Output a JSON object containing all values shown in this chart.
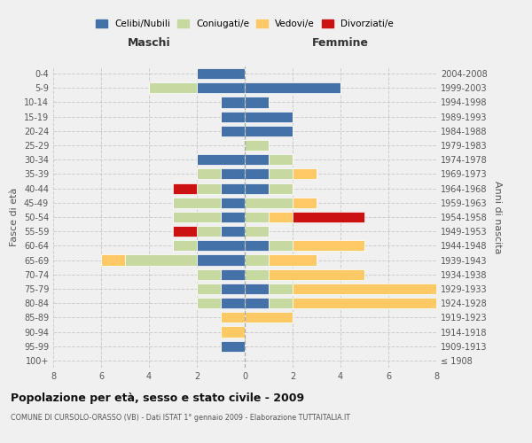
{
  "age_groups": [
    "100+",
    "95-99",
    "90-94",
    "85-89",
    "80-84",
    "75-79",
    "70-74",
    "65-69",
    "60-64",
    "55-59",
    "50-54",
    "45-49",
    "40-44",
    "35-39",
    "30-34",
    "25-29",
    "20-24",
    "15-19",
    "10-14",
    "5-9",
    "0-4"
  ],
  "birth_years": [
    "≤ 1908",
    "1909-1913",
    "1914-1918",
    "1919-1923",
    "1924-1928",
    "1929-1933",
    "1934-1938",
    "1939-1943",
    "1944-1948",
    "1949-1953",
    "1954-1958",
    "1959-1963",
    "1964-1968",
    "1969-1973",
    "1974-1978",
    "1979-1983",
    "1984-1988",
    "1989-1993",
    "1994-1998",
    "1999-2003",
    "2004-2008"
  ],
  "maschi": {
    "celibi": [
      0,
      1,
      0,
      0,
      1,
      1,
      1,
      2,
      2,
      1,
      1,
      1,
      1,
      1,
      2,
      0,
      1,
      1,
      1,
      2,
      2
    ],
    "coniugati": [
      0,
      0,
      0,
      0,
      1,
      1,
      1,
      3,
      1,
      1,
      2,
      2,
      1,
      1,
      0,
      0,
      0,
      0,
      0,
      2,
      0
    ],
    "vedovi": [
      0,
      0,
      1,
      1,
      0,
      0,
      0,
      1,
      0,
      0,
      0,
      0,
      0,
      0,
      0,
      0,
      0,
      0,
      0,
      0,
      0
    ],
    "divorziati": [
      0,
      0,
      0,
      0,
      0,
      0,
      0,
      0,
      0,
      1,
      0,
      0,
      1,
      0,
      0,
      0,
      0,
      0,
      0,
      0,
      0
    ]
  },
  "femmine": {
    "nubili": [
      0,
      0,
      0,
      0,
      1,
      1,
      0,
      0,
      1,
      0,
      0,
      0,
      1,
      1,
      1,
      0,
      2,
      2,
      1,
      4,
      0
    ],
    "coniugate": [
      0,
      0,
      0,
      0,
      1,
      1,
      1,
      1,
      1,
      1,
      1,
      2,
      1,
      1,
      1,
      1,
      0,
      0,
      0,
      0,
      0
    ],
    "vedove": [
      0,
      0,
      0,
      2,
      7,
      7,
      4,
      2,
      3,
      0,
      1,
      1,
      0,
      1,
      0,
      0,
      0,
      0,
      0,
      0,
      0
    ],
    "divorziate": [
      0,
      0,
      0,
      0,
      0,
      0,
      0,
      0,
      0,
      0,
      3,
      0,
      0,
      0,
      0,
      0,
      0,
      0,
      0,
      0,
      0
    ]
  },
  "colors": {
    "celibi": "#4472a8",
    "coniugati": "#c5d9a0",
    "vedovi": "#ffc966",
    "divorziati": "#cc1111"
  },
  "title": "Popolazione per età, sesso e stato civile - 2009",
  "subtitle": "COMUNE DI CURSOLO-ORASSO (VB) - Dati ISTAT 1° gennaio 2009 - Elaborazione TUTTAITALIA.IT",
  "xlabel_left": "Maschi",
  "xlabel_right": "Femmine",
  "ylabel_left": "Fasce di età",
  "ylabel_right": "Anni di nascita",
  "xlim": 8,
  "bg_color": "#f0f0f0",
  "grid_color": "#cccccc"
}
